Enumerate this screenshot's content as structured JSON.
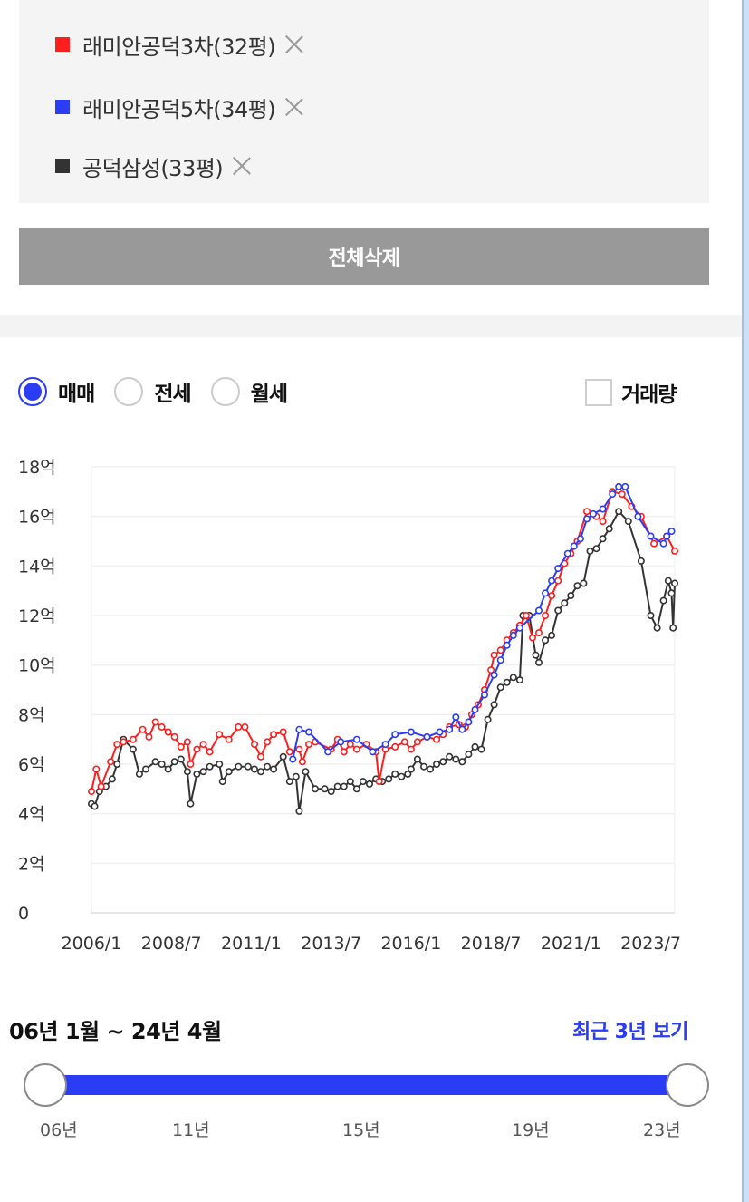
{
  "compare_list": {
    "items": [
      {
        "label": "래미안공덕3차(32평)",
        "color": "#ff1e1e"
      },
      {
        "label": "래미안공덕5차(34평)",
        "color": "#2a3df5"
      },
      {
        "label": "공덕삼성(33평)",
        "color": "#333333"
      }
    ],
    "clear_all_label": "전체삭제"
  },
  "filters": {
    "radios": [
      {
        "label": "매매",
        "checked": true
      },
      {
        "label": "전세",
        "checked": false
      },
      {
        "label": "월세",
        "checked": false
      }
    ],
    "volume_label": "거래량",
    "volume_checked": false
  },
  "range": {
    "title": "06년 1월 ~ 24년 4월",
    "recent_label": "최근 3년 보기",
    "start": "06년",
    "end": "24년 4월",
    "ticks": [
      "06년",
      "11년",
      "15년",
      "19년",
      "23년"
    ]
  },
  "chart_data": {
    "type": "line",
    "y_unit": "억",
    "ylim": [
      0,
      18
    ],
    "yticks": [
      "0",
      "2억",
      "4억",
      "6억",
      "8억",
      "10억",
      "12억",
      "14억",
      "16억",
      "18억"
    ],
    "xlim": [
      2006.0,
      2024.25
    ],
    "xticks": [
      "2006/1",
      "2008/7",
      "2011/1",
      "2013/7",
      "2016/1",
      "2018/7",
      "2021/1",
      "2023/7"
    ],
    "grid": true,
    "series": [
      {
        "name": "래미안공덕3차(32평)",
        "color": "#ff1e1e",
        "points": [
          [
            2006.0,
            4.9
          ],
          [
            2006.15,
            5.8
          ],
          [
            2006.3,
            5.1
          ],
          [
            2006.6,
            6.1
          ],
          [
            2006.8,
            6.8
          ],
          [
            2007.0,
            6.9
          ],
          [
            2007.3,
            7.0
          ],
          [
            2007.6,
            7.4
          ],
          [
            2007.8,
            7.1
          ],
          [
            2008.0,
            7.7
          ],
          [
            2008.2,
            7.5
          ],
          [
            2008.4,
            7.3
          ],
          [
            2008.6,
            7.1
          ],
          [
            2008.8,
            6.7
          ],
          [
            2009.0,
            6.9
          ],
          [
            2009.1,
            6.0
          ],
          [
            2009.3,
            6.6
          ],
          [
            2009.5,
            6.8
          ],
          [
            2009.7,
            6.5
          ],
          [
            2010.0,
            7.2
          ],
          [
            2010.3,
            7.0
          ],
          [
            2010.6,
            7.5
          ],
          [
            2010.8,
            7.5
          ],
          [
            2011.1,
            6.8
          ],
          [
            2011.3,
            6.3
          ],
          [
            2011.5,
            6.9
          ],
          [
            2011.7,
            7.2
          ],
          [
            2012.0,
            7.3
          ],
          [
            2012.2,
            6.5
          ],
          [
            2012.5,
            6.6
          ],
          [
            2012.6,
            6.1
          ],
          [
            2012.8,
            6.8
          ],
          [
            2013.0,
            6.9
          ],
          [
            2013.5,
            6.6
          ],
          [
            2013.7,
            7.0
          ],
          [
            2013.9,
            6.5
          ],
          [
            2014.1,
            6.8
          ],
          [
            2014.3,
            6.6
          ],
          [
            2014.6,
            6.8
          ],
          [
            2014.9,
            6.5
          ],
          [
            2015.0,
            5.3
          ],
          [
            2015.2,
            6.6
          ],
          [
            2015.5,
            6.7
          ],
          [
            2015.8,
            6.9
          ],
          [
            2016.0,
            6.6
          ],
          [
            2016.2,
            6.9
          ],
          [
            2016.5,
            7.1
          ],
          [
            2016.8,
            7.0
          ],
          [
            2017.0,
            7.2
          ],
          [
            2017.2,
            7.5
          ],
          [
            2017.5,
            7.6
          ],
          [
            2017.7,
            7.5
          ],
          [
            2017.9,
            8.0
          ],
          [
            2018.1,
            8.4
          ],
          [
            2018.3,
            9.0
          ],
          [
            2018.5,
            9.8
          ],
          [
            2018.6,
            10.4
          ],
          [
            2018.8,
            10.6
          ],
          [
            2019.0,
            11.0
          ],
          [
            2019.2,
            11.3
          ],
          [
            2019.4,
            11.6
          ],
          [
            2019.6,
            12.0
          ],
          [
            2019.8,
            11.1
          ],
          [
            2020.0,
            11.3
          ],
          [
            2020.2,
            12.0
          ],
          [
            2020.4,
            12.8
          ],
          [
            2020.6,
            13.4
          ],
          [
            2020.8,
            14.1
          ],
          [
            2021.0,
            14.5
          ],
          [
            2021.2,
            15.0
          ],
          [
            2021.5,
            16.2
          ],
          [
            2021.8,
            16.0
          ],
          [
            2022.0,
            15.8
          ],
          [
            2022.3,
            17.0
          ],
          [
            2022.6,
            16.9
          ],
          [
            2022.9,
            16.4
          ],
          [
            2023.2,
            16.0
          ],
          [
            2023.6,
            14.9
          ],
          [
            2024.0,
            15.2
          ],
          [
            2024.25,
            14.6
          ]
        ]
      },
      {
        "name": "래미안공덕5차(34평)",
        "color": "#2a3df5",
        "points": [
          [
            2012.3,
            6.2
          ],
          [
            2012.5,
            7.4
          ],
          [
            2012.8,
            7.3
          ],
          [
            2013.4,
            6.5
          ],
          [
            2013.8,
            6.9
          ],
          [
            2014.3,
            7.0
          ],
          [
            2014.8,
            6.5
          ],
          [
            2015.2,
            6.8
          ],
          [
            2015.5,
            7.2
          ],
          [
            2016.0,
            7.3
          ],
          [
            2016.5,
            7.1
          ],
          [
            2016.9,
            7.3
          ],
          [
            2017.2,
            7.4
          ],
          [
            2017.4,
            7.9
          ],
          [
            2017.6,
            7.4
          ],
          [
            2017.8,
            7.7
          ],
          [
            2018.0,
            8.2
          ],
          [
            2018.3,
            8.8
          ],
          [
            2018.6,
            9.6
          ],
          [
            2018.8,
            10.2
          ],
          [
            2019.0,
            10.8
          ],
          [
            2019.2,
            11.2
          ],
          [
            2019.4,
            11.5
          ],
          [
            2020.0,
            12.2
          ],
          [
            2020.2,
            12.9
          ],
          [
            2020.4,
            13.4
          ],
          [
            2020.6,
            13.9
          ],
          [
            2020.9,
            14.5
          ],
          [
            2021.1,
            14.8
          ],
          [
            2021.3,
            15.1
          ],
          [
            2021.5,
            15.9
          ],
          [
            2021.7,
            16.1
          ],
          [
            2022.0,
            16.3
          ],
          [
            2022.3,
            16.9
          ],
          [
            2022.5,
            17.2
          ],
          [
            2022.7,
            17.2
          ],
          [
            2023.1,
            16.0
          ],
          [
            2023.5,
            15.2
          ],
          [
            2023.9,
            14.9
          ],
          [
            2024.0,
            15.2
          ],
          [
            2024.15,
            15.4
          ]
        ]
      },
      {
        "name": "공덕삼성(33평)",
        "color": "#333333",
        "points": [
          [
            2006.0,
            4.4
          ],
          [
            2006.1,
            4.3
          ],
          [
            2006.25,
            4.9
          ],
          [
            2006.45,
            5.1
          ],
          [
            2006.65,
            5.4
          ],
          [
            2006.8,
            6.0
          ],
          [
            2007.0,
            7.0
          ],
          [
            2007.3,
            6.6
          ],
          [
            2007.5,
            5.6
          ],
          [
            2007.7,
            5.8
          ],
          [
            2008.0,
            6.1
          ],
          [
            2008.2,
            6.0
          ],
          [
            2008.4,
            5.8
          ],
          [
            2008.6,
            6.1
          ],
          [
            2008.8,
            6.2
          ],
          [
            2009.0,
            5.7
          ],
          [
            2009.1,
            4.4
          ],
          [
            2009.3,
            5.6
          ],
          [
            2009.5,
            5.7
          ],
          [
            2009.7,
            5.9
          ],
          [
            2010.0,
            6.0
          ],
          [
            2010.1,
            5.3
          ],
          [
            2010.3,
            5.7
          ],
          [
            2010.6,
            5.9
          ],
          [
            2010.9,
            5.9
          ],
          [
            2011.1,
            5.8
          ],
          [
            2011.3,
            5.7
          ],
          [
            2011.5,
            5.9
          ],
          [
            2011.7,
            5.8
          ],
          [
            2012.0,
            6.3
          ],
          [
            2012.2,
            5.3
          ],
          [
            2012.4,
            5.5
          ],
          [
            2012.5,
            4.1
          ],
          [
            2012.7,
            5.7
          ],
          [
            2013.0,
            5.0
          ],
          [
            2013.3,
            5.0
          ],
          [
            2013.5,
            4.9
          ],
          [
            2013.7,
            5.1
          ],
          [
            2013.9,
            5.1
          ],
          [
            2014.1,
            5.3
          ],
          [
            2014.3,
            5.0
          ],
          [
            2014.5,
            5.3
          ],
          [
            2014.7,
            5.2
          ],
          [
            2014.9,
            5.4
          ],
          [
            2015.1,
            5.3
          ],
          [
            2015.3,
            5.4
          ],
          [
            2015.5,
            5.6
          ],
          [
            2015.7,
            5.5
          ],
          [
            2015.9,
            5.6
          ],
          [
            2016.0,
            5.8
          ],
          [
            2016.2,
            6.2
          ],
          [
            2016.4,
            5.9
          ],
          [
            2016.6,
            5.8
          ],
          [
            2016.8,
            6.0
          ],
          [
            2017.0,
            6.1
          ],
          [
            2017.2,
            6.3
          ],
          [
            2017.4,
            6.2
          ],
          [
            2017.6,
            6.1
          ],
          [
            2017.8,
            6.4
          ],
          [
            2018.0,
            6.7
          ],
          [
            2018.2,
            6.6
          ],
          [
            2018.4,
            7.8
          ],
          [
            2018.6,
            8.4
          ],
          [
            2018.8,
            9.1
          ],
          [
            2019.0,
            9.3
          ],
          [
            2019.2,
            9.5
          ],
          [
            2019.4,
            9.4
          ],
          [
            2019.5,
            12.0
          ],
          [
            2019.7,
            12.0
          ],
          [
            2019.9,
            10.4
          ],
          [
            2020.0,
            10.1
          ],
          [
            2020.2,
            11.0
          ],
          [
            2020.4,
            11.2
          ],
          [
            2020.6,
            12.2
          ],
          [
            2020.8,
            12.5
          ],
          [
            2021.0,
            12.8
          ],
          [
            2021.2,
            13.2
          ],
          [
            2021.4,
            13.3
          ],
          [
            2021.6,
            14.6
          ],
          [
            2021.8,
            14.7
          ],
          [
            2022.0,
            15.1
          ],
          [
            2022.2,
            15.5
          ],
          [
            2022.5,
            16.2
          ],
          [
            2022.8,
            15.8
          ],
          [
            2023.2,
            14.2
          ],
          [
            2023.5,
            12.0
          ],
          [
            2023.7,
            11.5
          ],
          [
            2023.9,
            12.6
          ],
          [
            2024.05,
            13.4
          ],
          [
            2024.15,
            12.9
          ],
          [
            2024.2,
            11.5
          ],
          [
            2024.25,
            13.3
          ]
        ]
      }
    ]
  }
}
